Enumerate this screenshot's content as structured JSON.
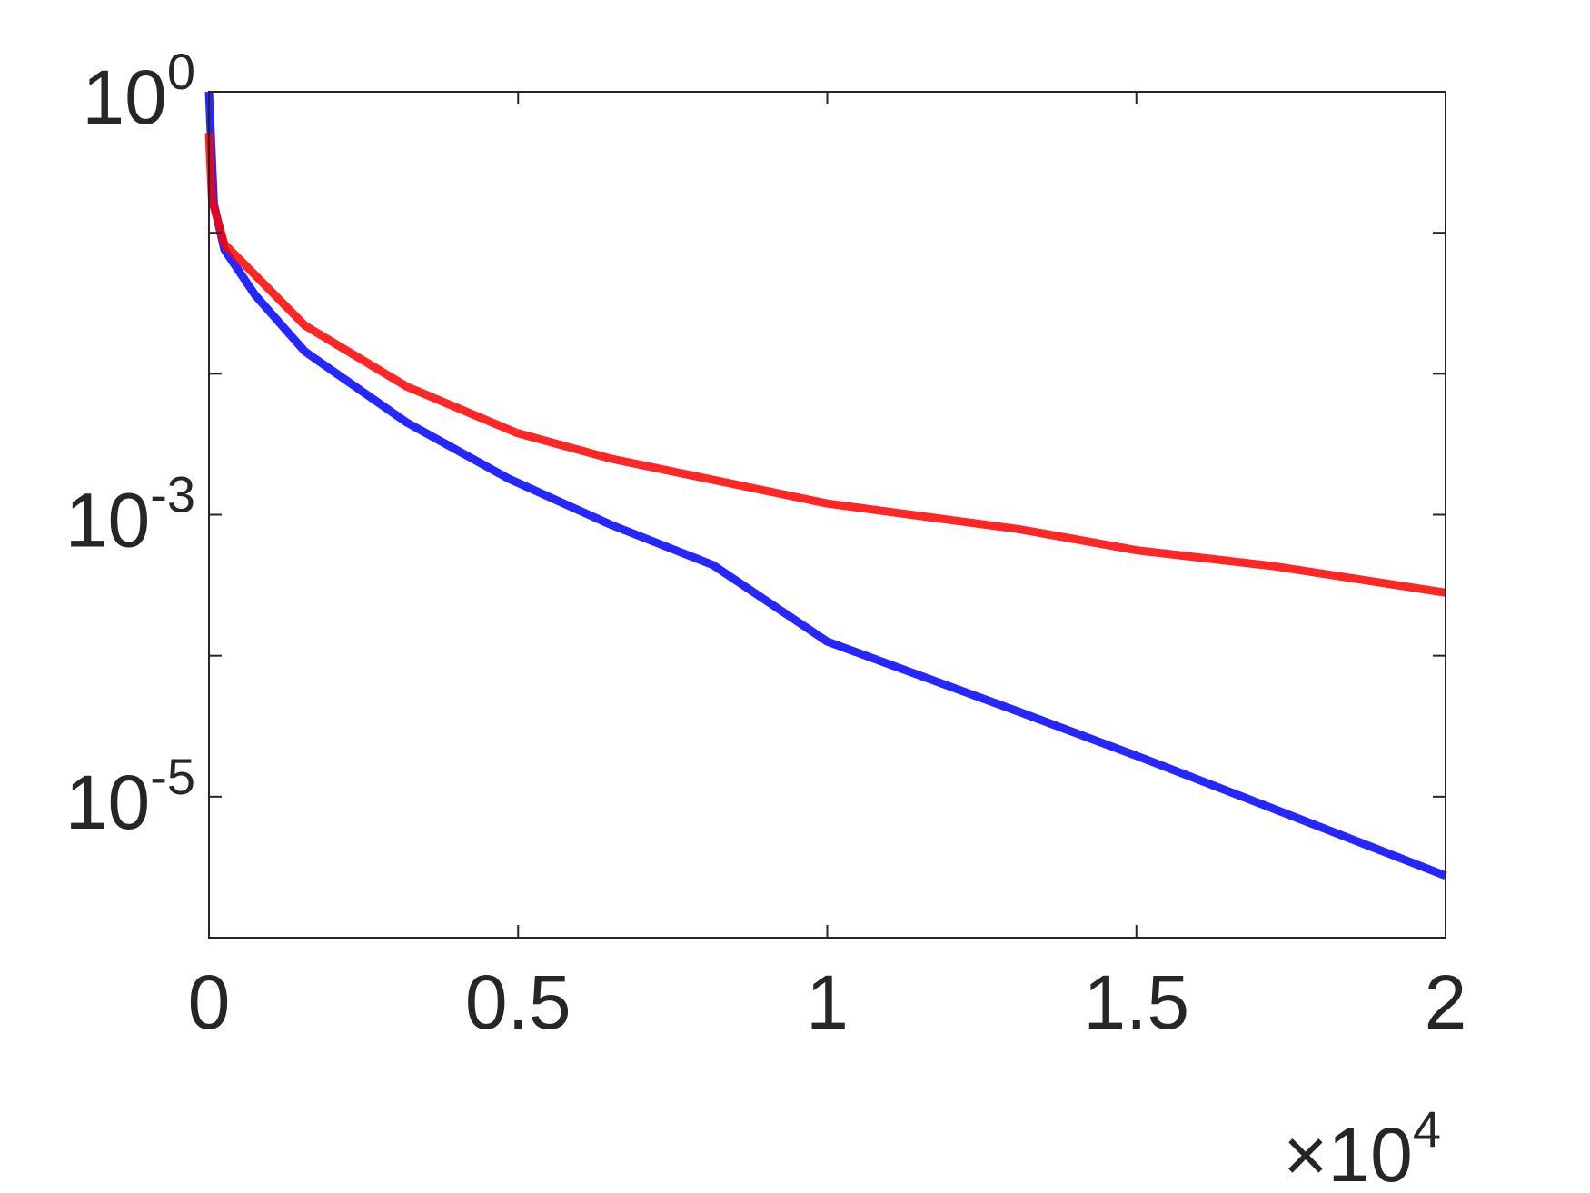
{
  "chart_data": {
    "type": "line",
    "xlim": [
      0,
      20000
    ],
    "xticks": [
      {
        "value": 0,
        "label": "0"
      },
      {
        "value": 5000,
        "label": "0.5"
      },
      {
        "value": 10000,
        "label": "1"
      },
      {
        "value": 15000,
        "label": "1.5"
      },
      {
        "value": 20000,
        "label": "2"
      }
    ],
    "x_multiplier": {
      "label": "×10",
      "exponent": "4"
    },
    "ylim": [
      1e-06,
      1
    ],
    "log_y": true,
    "yticks": [
      {
        "value": 1,
        "label": "10",
        "exponent": "0"
      },
      {
        "value": 0.001,
        "label": "10",
        "exponent": "-3"
      },
      {
        "value": 1e-05,
        "label": "10",
        "exponent": "-5"
      }
    ],
    "yminor_ticks": [
      0.1,
      0.01,
      0.0001
    ],
    "grid": false,
    "series": [
      {
        "color": "#0000ff",
        "x": [
          0,
          30,
          80,
          250,
          750,
          1550,
          3200,
          4850,
          6500,
          8150,
          10000,
          13100,
          15000,
          17250,
          20000
        ],
        "values": [
          1,
          0.51,
          0.16,
          0.076,
          0.036,
          0.0144,
          0.0045,
          0.0018,
          0.00085,
          0.00044,
          0.000126,
          4e-05,
          1.95e-05,
          8.1e-06,
          2.75e-06
        ]
      },
      {
        "color": "#ff0000",
        "x": [
          0,
          50,
          250,
          750,
          1550,
          3200,
          4980,
          6500,
          10000,
          13100,
          15000,
          17250,
          20000
        ],
        "values": [
          0.51,
          0.17,
          0.083,
          0.05,
          0.022,
          0.0081,
          0.0038,
          0.0025,
          0.0012,
          0.00079,
          0.00056,
          0.00043,
          0.00028
        ]
      }
    ]
  }
}
